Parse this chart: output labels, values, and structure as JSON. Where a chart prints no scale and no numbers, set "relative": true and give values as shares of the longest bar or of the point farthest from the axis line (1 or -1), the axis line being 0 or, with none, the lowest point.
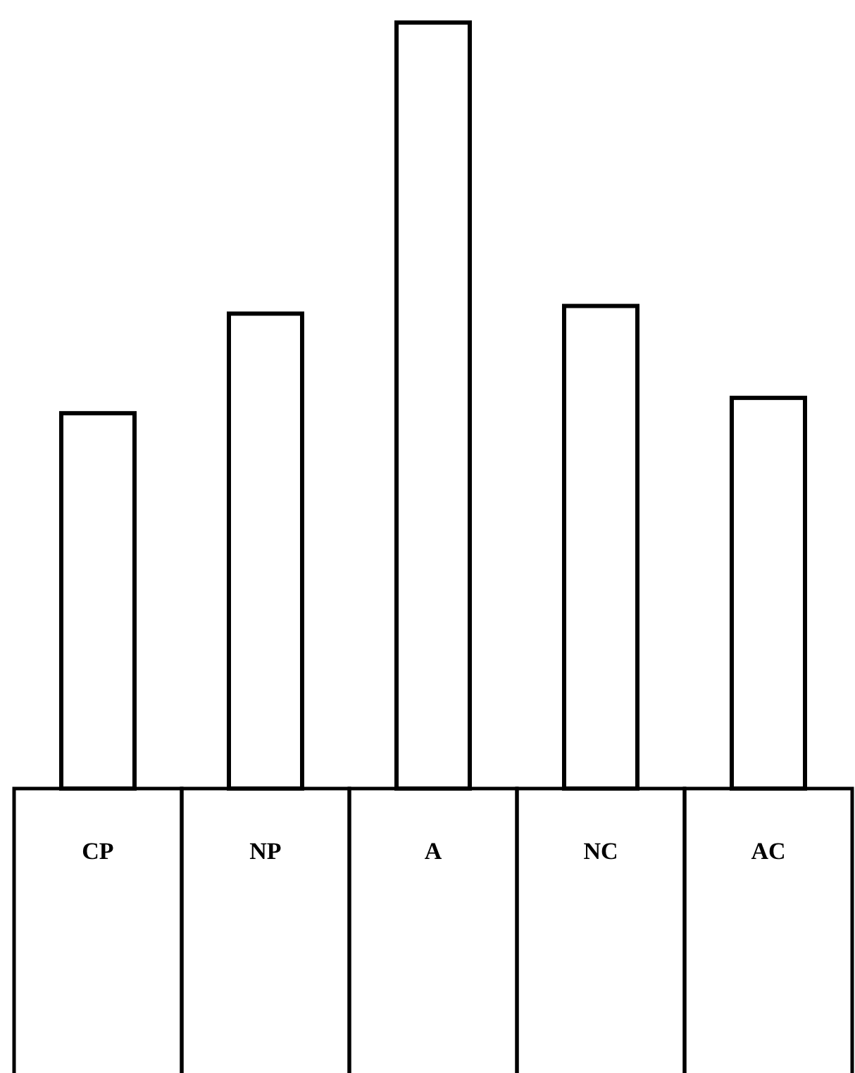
{
  "chart_data": {
    "type": "bar",
    "relative": true,
    "categories": [
      "CP",
      "NP",
      "A",
      "NC",
      "AC"
    ],
    "values": [
      0.49,
      0.62,
      1,
      0.63,
      0.51
    ],
    "color": "#ffffff"
  }
}
